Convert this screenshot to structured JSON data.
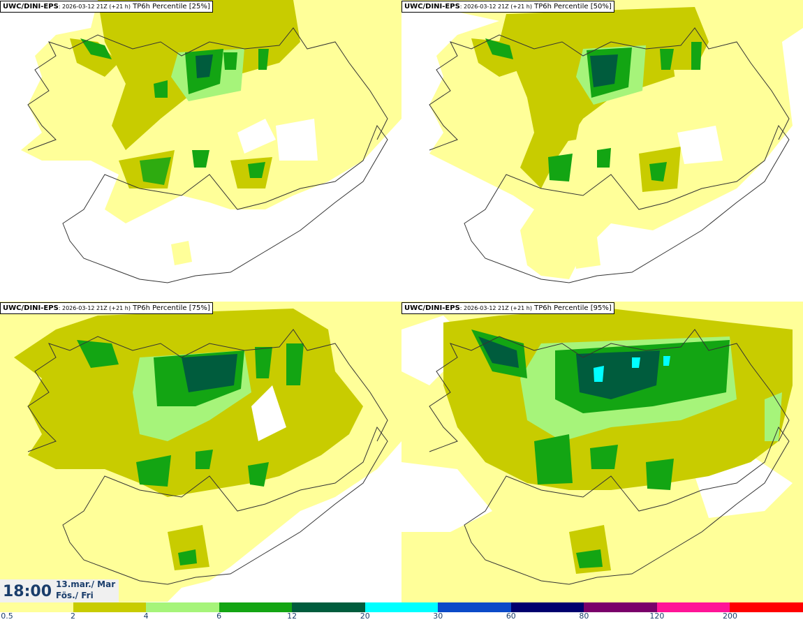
{
  "panels": [
    {
      "model": "UWC/DINI-EPS",
      "run": ": 2026-03-12 21Z (+21 h)",
      "field": " TP6h Percentile [25%]"
    },
    {
      "model": "UWC/DINI-EPS",
      "run": ": 2026-03-12 21Z (+21 h)",
      "field": " TP6h Percentile [50%]"
    },
    {
      "model": "UWC/DINI-EPS",
      "run": ": 2026-03-12 21Z (+21 h)",
      "field": " TP6h Percentile [75%]"
    },
    {
      "model": "UWC/DINI-EPS",
      "run": ": 2026-03-12 21Z (+21 h)",
      "field": " TP6h Percentile [95%]"
    }
  ],
  "valid_time": {
    "time": "18:00",
    "date_line1": "13.mar./ Mar",
    "date_line2": "Fös./ Fri"
  },
  "legend": {
    "levels": [
      "0.5",
      "2",
      "4",
      "6",
      "12",
      "20",
      "30",
      "60",
      "80",
      "120",
      "200"
    ],
    "colors": [
      "#ffff99",
      "#c8cc00",
      "#a6f47a",
      "#13a513",
      "#005c3d",
      "#00ffff",
      "#0b4ac8",
      "#00006e",
      "#7a006a",
      "#ff1497",
      "#ff0000"
    ]
  },
  "map_colors": {
    "light_yellow": "#ffff99",
    "olive": "#c8cc00",
    "light_green": "#a6f47a",
    "green": "#13a513",
    "dark_green": "#005c3d",
    "cyan": "#00ffff",
    "outline": "#333333"
  }
}
